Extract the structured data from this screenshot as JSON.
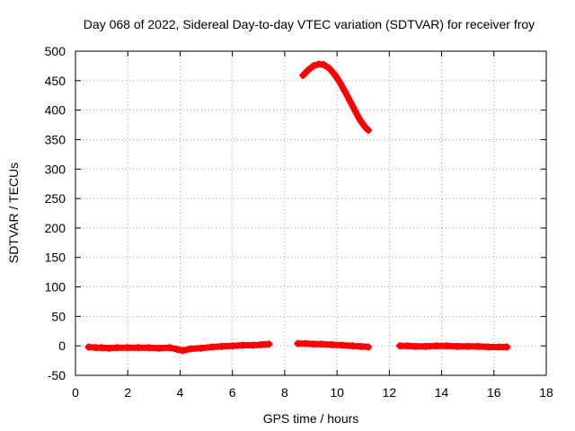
{
  "chart_data": {
    "type": "scatter",
    "title": "Day 068 of 2022, Sidereal Day-to-day VTEC variation (SDTVAR) for receiver froy",
    "xlabel": "GPS time / hours",
    "ylabel": "SDTVAR / TECUs",
    "xlim": [
      0,
      18
    ],
    "ylim": [
      -50,
      500
    ],
    "xticks": [
      0,
      2,
      4,
      6,
      8,
      10,
      12,
      14,
      16,
      18
    ],
    "yticks": [
      -50,
      0,
      50,
      100,
      150,
      200,
      250,
      300,
      350,
      400,
      450,
      500
    ],
    "grid": true,
    "marker": "plus",
    "series_color": "#ff0000",
    "series": [
      {
        "name": "segment-1",
        "x": [
          0.5,
          0.8,
          1.0,
          1.3,
          1.6,
          2.0,
          2.4,
          2.8,
          3.2,
          3.6,
          3.9,
          4.1,
          4.4,
          4.8,
          5.2,
          5.6,
          6.0,
          6.4,
          6.8,
          7.1,
          7.4
        ],
        "y": [
          -2,
          -3,
          -3,
          -4,
          -3,
          -3,
          -3,
          -3,
          -4,
          -3,
          -6,
          -8,
          -5,
          -4,
          -2,
          -1,
          0,
          1,
          1,
          2,
          3
        ]
      },
      {
        "name": "segment-2-low",
        "x": [
          8.5,
          8.8,
          9.1,
          9.4,
          9.8,
          10.2,
          10.6,
          10.9,
          11.2
        ],
        "y": [
          4,
          4,
          3,
          3,
          2,
          1,
          0,
          -1,
          -2
        ]
      },
      {
        "name": "segment-2-high",
        "x": [
          8.7,
          8.9,
          9.1,
          9.3,
          9.5,
          9.7,
          9.9,
          10.1,
          10.3,
          10.5,
          10.7,
          10.9,
          11.1,
          11.2
        ],
        "y": [
          459,
          468,
          475,
          478,
          477,
          471,
          461,
          448,
          432,
          415,
          398,
          382,
          370,
          366
        ]
      },
      {
        "name": "segment-3",
        "x": [
          12.4,
          12.7,
          13.0,
          13.4,
          13.8,
          14.2,
          14.6,
          15.0,
          15.4,
          15.8,
          16.2,
          16.5
        ],
        "y": [
          0,
          0,
          -1,
          -1,
          0,
          0,
          -1,
          -1,
          -1,
          -2,
          -2,
          -2
        ]
      }
    ]
  }
}
